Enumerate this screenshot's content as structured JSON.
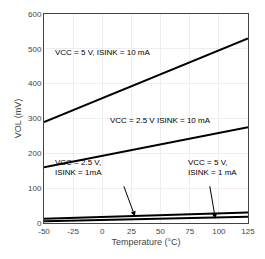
{
  "chart_data": {
    "type": "line",
    "xlabel": "Temperature (°C)",
    "ylabel": "VOL (mV)",
    "color": "#000000",
    "xlim": [
      -50,
      125
    ],
    "ylim": [
      0,
      600
    ],
    "xticks": [
      -50,
      -25,
      0,
      25,
      50,
      75,
      100,
      125
    ],
    "yticks": [
      0,
      100,
      200,
      300,
      400,
      500,
      600
    ],
    "grid": true,
    "series": [
      {
        "x": [
          -50,
          125
        ],
        "values": [
          290,
          530
        ]
      },
      {
        "x": [
          -50,
          125
        ],
        "values": [
          160,
          275
        ]
      },
      {
        "x": [
          -50,
          125
        ],
        "values": [
          12,
          30
        ]
      },
      {
        "x": [
          -50,
          125
        ],
        "values": [
          5,
          18
        ]
      }
    ],
    "annotations": [
      {
        "text": "VCC = 5 V, ISINK = 10 mA",
        "x": -42,
        "y": 490
      },
      {
        "text": "VCC = 2.5 V ISINK = 10 mA",
        "x": 5,
        "y": 295
      },
      {
        "text": "VCC = 2.5 V,\nISINK = 1mA",
        "x": -42,
        "y": 160,
        "arrow": {
          "from": [
            18,
            110
          ],
          "to": [
            28,
            19
          ]
        }
      },
      {
        "text": "VCC = 5 V,\nISINK = 1 mA",
        "x": 72,
        "y": 160,
        "arrow": {
          "from": [
            92,
            110
          ],
          "to": [
            97,
            12
          ]
        }
      }
    ]
  }
}
